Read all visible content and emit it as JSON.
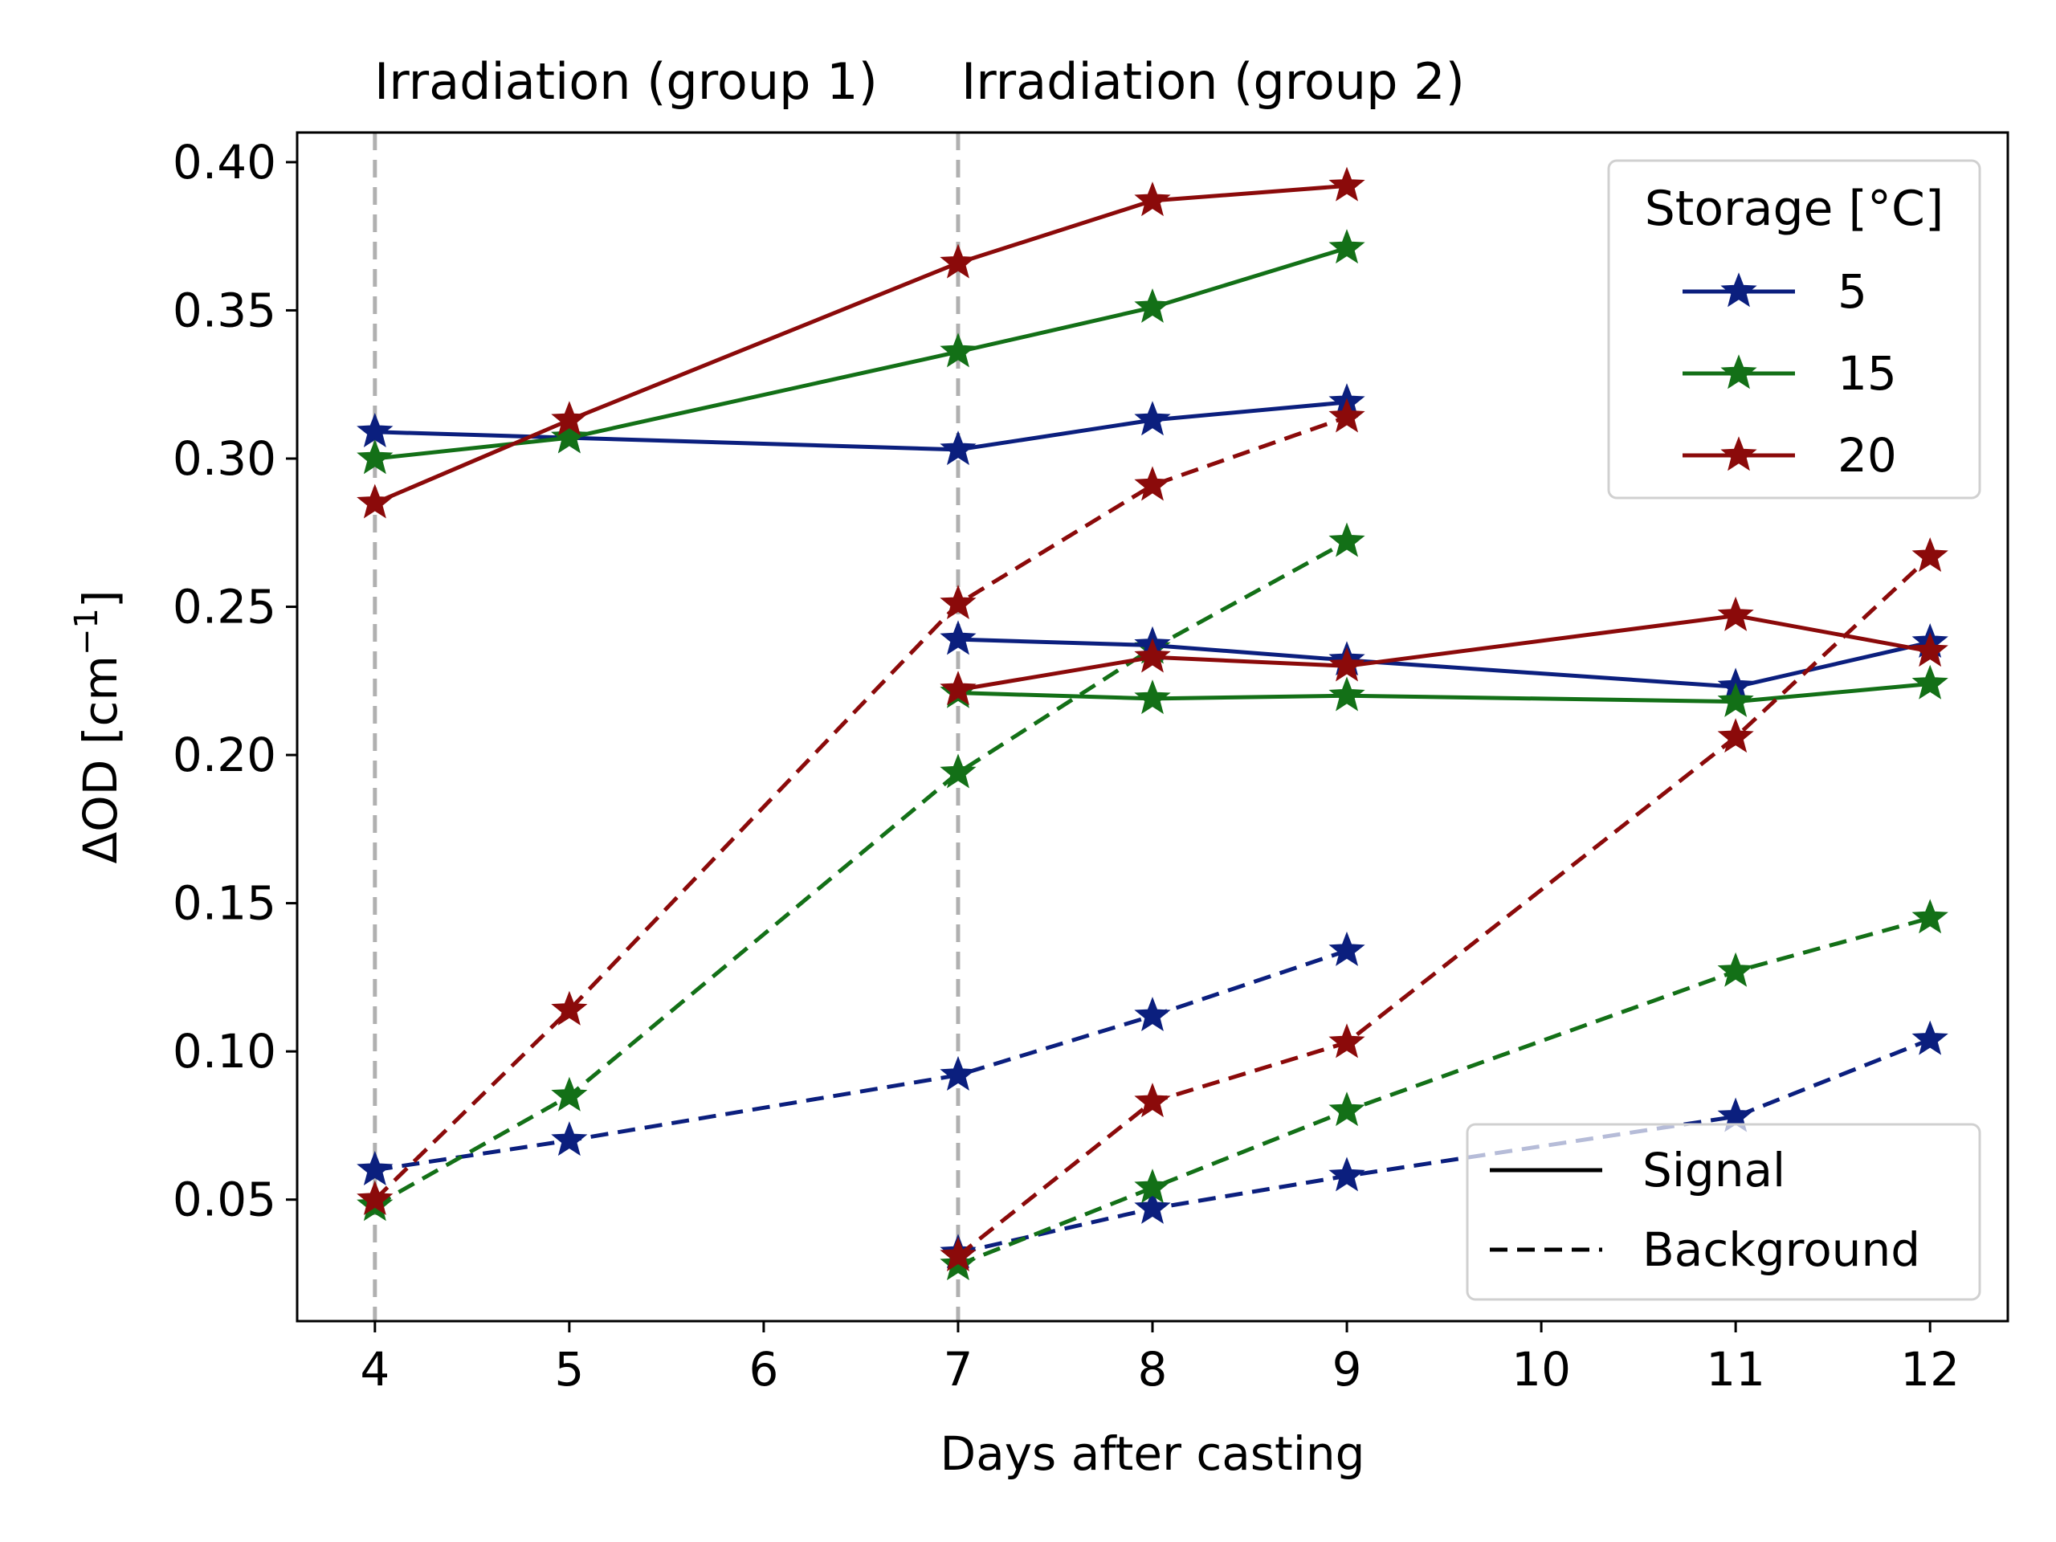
{
  "chart_data": {
    "type": "line",
    "xlabel": "Days after casting",
    "ylabel_main": "ΔOD [cm",
    "ylabel_sup": "−1",
    "ylabel_close": "]",
    "xlim": [
      3.6,
      12.4
    ],
    "ylim": [
      0.009,
      0.41
    ],
    "xticks": [
      4,
      5,
      6,
      7,
      8,
      9,
      10,
      11,
      12
    ],
    "yticks": [
      0.05,
      0.1,
      0.15,
      0.2,
      0.25,
      0.3,
      0.35,
      0.4
    ],
    "ytick_labels": [
      "0.05",
      "0.10",
      "0.15",
      "0.20",
      "0.25",
      "0.30",
      "0.35",
      "0.40"
    ],
    "grid": false,
    "vlines": [
      {
        "x": 4,
        "label": "Irradiation (group 1)"
      },
      {
        "x": 7,
        "label": "Irradiation (group 2)"
      }
    ],
    "colors": {
      "5": "#0b1f7e",
      "15": "#137017",
      "20": "#8b0a0a"
    },
    "series": [
      {
        "group": 1,
        "storage": "5",
        "kind": "signal",
        "x": [
          4,
          5,
          7,
          8,
          9
        ],
        "y": [
          0.309,
          0.307,
          0.303,
          0.313,
          0.319
        ]
      },
      {
        "group": 1,
        "storage": "15",
        "kind": "signal",
        "x": [
          4,
          5,
          7,
          8,
          9
        ],
        "y": [
          0.3,
          0.307,
          0.336,
          0.351,
          0.371
        ]
      },
      {
        "group": 1,
        "storage": "20",
        "kind": "signal",
        "x": [
          4,
          5,
          7,
          8,
          9
        ],
        "y": [
          0.285,
          0.313,
          0.366,
          0.387,
          0.392
        ]
      },
      {
        "group": 1,
        "storage": "5",
        "kind": "background",
        "x": [
          4,
          5,
          7,
          8,
          9
        ],
        "y": [
          0.06,
          0.07,
          0.092,
          0.112,
          0.134
        ]
      },
      {
        "group": 1,
        "storage": "15",
        "kind": "background",
        "x": [
          4,
          5,
          7,
          8,
          9
        ],
        "y": [
          0.048,
          0.085,
          0.194,
          0.236,
          0.272
        ]
      },
      {
        "group": 1,
        "storage": "20",
        "kind": "background",
        "x": [
          4,
          5,
          7,
          8,
          9
        ],
        "y": [
          0.05,
          0.114,
          0.251,
          0.291,
          0.314
        ]
      },
      {
        "group": 2,
        "storage": "5",
        "kind": "signal",
        "x": [
          7,
          8,
          9,
          11,
          12
        ],
        "y": [
          0.239,
          0.237,
          0.232,
          0.223,
          0.238
        ]
      },
      {
        "group": 2,
        "storage": "15",
        "kind": "signal",
        "x": [
          7,
          8,
          9,
          11,
          12
        ],
        "y": [
          0.221,
          0.219,
          0.22,
          0.218,
          0.224
        ]
      },
      {
        "group": 2,
        "storage": "20",
        "kind": "signal",
        "x": [
          7,
          8,
          9,
          11,
          12
        ],
        "y": [
          0.222,
          0.233,
          0.23,
          0.247,
          0.235
        ]
      },
      {
        "group": 2,
        "storage": "5",
        "kind": "background",
        "x": [
          7,
          8,
          9,
          11,
          12
        ],
        "y": [
          0.032,
          0.047,
          0.058,
          0.078,
          0.104
        ]
      },
      {
        "group": 2,
        "storage": "15",
        "kind": "background",
        "x": [
          7,
          8,
          9,
          11,
          12
        ],
        "y": [
          0.028,
          0.054,
          0.08,
          0.127,
          0.145
        ]
      },
      {
        "group": 2,
        "storage": "20",
        "kind": "background",
        "x": [
          7,
          8,
          9,
          11,
          12
        ],
        "y": [
          0.031,
          0.083,
          0.103,
          0.206,
          0.267
        ]
      }
    ],
    "legend_storage": {
      "title": "Storage [°C]",
      "placement": "top-right",
      "entries": [
        {
          "label": "5",
          "storage": "5"
        },
        {
          "label": "15",
          "storage": "15"
        },
        {
          "label": "20",
          "storage": "20"
        }
      ]
    },
    "legend_style": {
      "placement": "bottom-right",
      "entries": [
        {
          "label": "Signal",
          "kind": "signal"
        },
        {
          "label": "Background",
          "kind": "background"
        }
      ]
    }
  }
}
